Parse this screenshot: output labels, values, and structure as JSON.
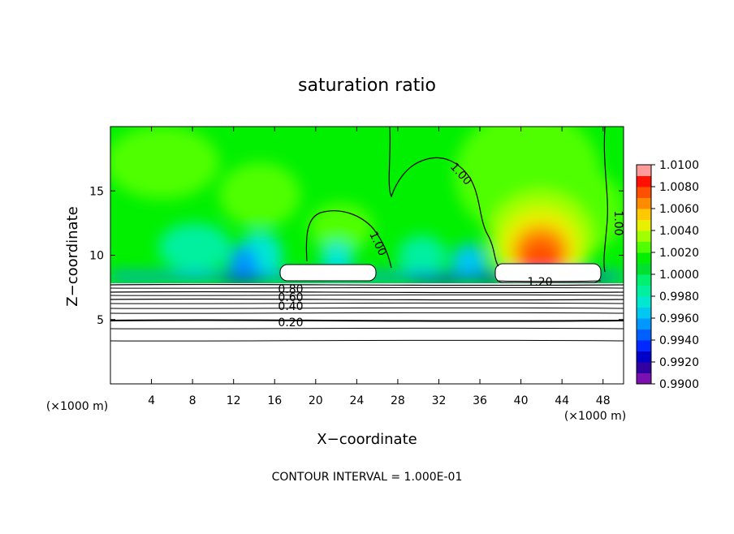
{
  "chart_data": {
    "type": "contour",
    "title": "saturation ratio",
    "xlabel": "X−coordinate",
    "ylabel": "Z−coordinate",
    "x_unit_left": "(×1000 m)",
    "x_unit_right": "(×1000 m)",
    "footnote": "CONTOUR INTERVAL = 1.000E-01",
    "xlim": [
      0,
      50
    ],
    "ylim": [
      0,
      20
    ],
    "xticks": [
      4,
      8,
      12,
      16,
      20,
      24,
      28,
      32,
      36,
      40,
      44,
      48
    ],
    "yticks": [
      5,
      10,
      15
    ],
    "colorbar": {
      "lim": [
        0.99,
        1.01
      ],
      "ticks": [
        {
          "value": 0.99,
          "label": "0.9900"
        },
        {
          "value": 0.992,
          "label": "0.9920"
        },
        {
          "value": 0.994,
          "label": "0.9940"
        },
        {
          "value": 0.996,
          "label": "0.9960"
        },
        {
          "value": 0.998,
          "label": "0.9980"
        },
        {
          "value": 1.0,
          "label": "1.0000"
        },
        {
          "value": 1.002,
          "label": "1.0020"
        },
        {
          "value": 1.004,
          "label": "1.0040"
        },
        {
          "value": 1.006,
          "label": "1.0060"
        },
        {
          "value": 1.008,
          "label": "1.0080"
        },
        {
          "value": 1.01,
          "label": "1.0100"
        }
      ],
      "colors": [
        "#7a10b0",
        "#3000a0",
        "#0000c8",
        "#0028ff",
        "#0060ff",
        "#0098ff",
        "#00c8f0",
        "#00e8d0",
        "#00f0a0",
        "#00f070",
        "#00e030",
        "#00f000",
        "#50ff00",
        "#a0ff00",
        "#e8f000",
        "#ffc800",
        "#ff8c00",
        "#ff5000",
        "#ff1000",
        "#ff9a9a"
      ]
    },
    "contour_labels": [
      {
        "value": 1,
        "label": "1.00"
      },
      {
        "value": 1,
        "label": "1.00"
      },
      {
        "value": 1,
        "label": "1.00"
      },
      {
        "value": 1.2,
        "label": "1.20"
      },
      {
        "value": 0.8,
        "label": "0.80"
      },
      {
        "value": 0.6,
        "label": "0.60"
      },
      {
        "value": 0.4,
        "label": "0.40"
      },
      {
        "value": 0.2,
        "label": "0.20"
      }
    ]
  }
}
